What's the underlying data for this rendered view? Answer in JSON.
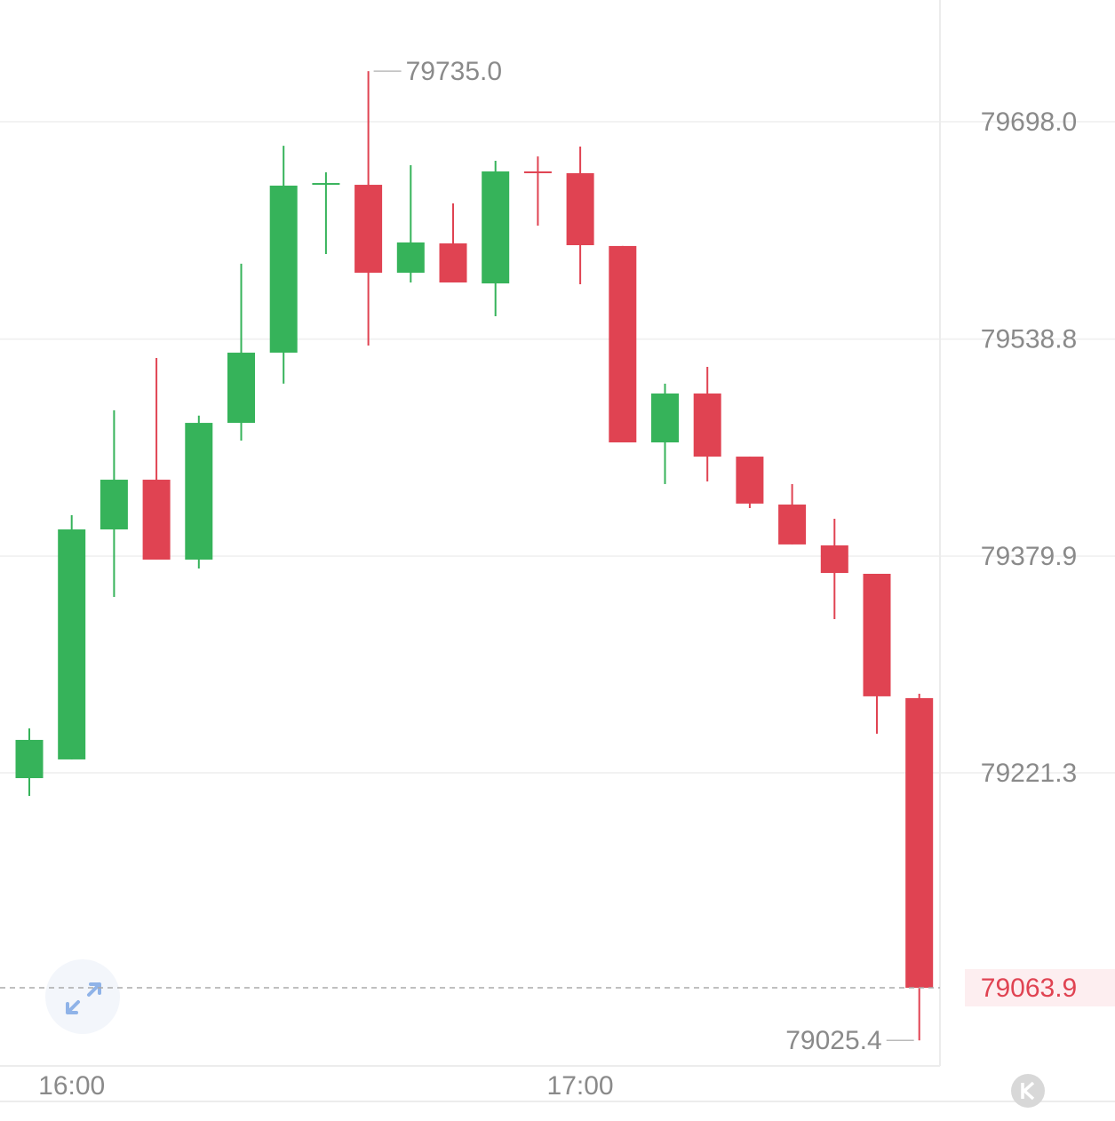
{
  "chart_data": {
    "type": "candlestick",
    "categories": [
      null,
      "16:00",
      null,
      null,
      null,
      null,
      null,
      null,
      null,
      null,
      null,
      null,
      null,
      "17:00",
      null,
      null,
      null,
      null,
      null,
      null,
      null,
      null
    ],
    "open": [
      79217.4,
      79231.1,
      79399.5,
      79435.9,
      79377.4,
      79477.5,
      79528.9,
      79652.5,
      79651.8,
      79587.4,
      79608.9,
      79579.6,
      79661.6,
      79660.3,
      79607.0,
      79463.2,
      79499.0,
      79452.8,
      79417.7,
      79387.8,
      79367.0,
      79276.0
    ],
    "high": [
      79253.8,
      79409.9,
      79486.7,
      79525.0,
      79482.8,
      79594.0,
      79680.4,
      79660.9,
      79735.0,
      79666.1,
      79638.2,
      79669.4,
      79672.6,
      79679.8,
      79607.0,
      79506.2,
      79518.5,
      79452.8,
      79432.7,
      79407.3,
      79367.0,
      79279.2
    ],
    "low": [
      79204.4,
      79231.1,
      79350.1,
      79377.4,
      79370.9,
      79464.5,
      79506.2,
      79601.1,
      79534.1,
      79580.3,
      79580.3,
      79555.6,
      79621.9,
      79579.0,
      79463.2,
      79432.7,
      79434.6,
      79415.1,
      79388.5,
      79333.8,
      79249.9,
      79025.4
    ],
    "close": [
      79245.4,
      79399.5,
      79435.9,
      79377.4,
      79477.5,
      79528.9,
      79651.2,
      79653.1,
      79587.4,
      79609.6,
      79580.3,
      79661.6,
      79660.9,
      79607.6,
      79463.2,
      79499.0,
      79452.8,
      79418.4,
      79388.5,
      79367.6,
      79277.3,
      79063.9
    ],
    "up_color": "#36b35a",
    "down_color": "#e04352",
    "ylim": [
      79006.7,
      79787.1
    ],
    "yticks": [
      {
        "value": 79698.0,
        "label": "79698.0"
      },
      79538.8,
      79379.9,
      79221.3
    ],
    "grid": true,
    "high_label": {
      "value": 79735.0,
      "label": "79735.0"
    },
    "low_label": 79025.4,
    "last_price": 79063.9
  }
}
